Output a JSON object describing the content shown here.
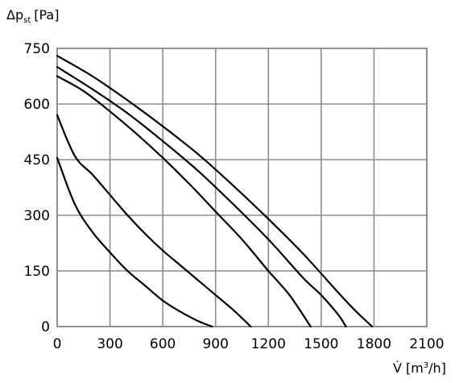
{
  "chart_data": {
    "type": "line",
    "ylabel": {
      "main": "Δp",
      "sub": "st",
      "unit": "[Pa]"
    },
    "xlabel": {
      "main": "V̇",
      "unit_pre": "[m",
      "unit_sup": "3",
      "unit_post": "/h]"
    },
    "xlim": [
      0,
      2100
    ],
    "ylim": [
      0,
      750
    ],
    "x_ticks": [
      "0",
      "300",
      "600",
      "900",
      "1200",
      "1500",
      "1800",
      "2100"
    ],
    "y_ticks": [
      "0",
      "150",
      "300",
      "450",
      "600",
      "750"
    ],
    "x_tick_values": [
      0,
      300,
      600,
      900,
      1200,
      1500,
      1800,
      2100
    ],
    "y_tick_values": [
      0,
      150,
      300,
      450,
      600,
      750
    ],
    "grid": true,
    "series": [
      {
        "x": [
          0,
          100,
          200,
          300,
          400,
          500,
          600,
          700,
          800,
          880
        ],
        "y": [
          455,
          330,
          255,
          200,
          150,
          110,
          70,
          40,
          15,
          0
        ]
      },
      {
        "x": [
          0,
          100,
          200,
          300,
          400,
          500,
          600,
          700,
          800,
          900,
          1000,
          1100
        ],
        "y": [
          570,
          460,
          410,
          355,
          300,
          250,
          205,
          165,
          125,
          85,
          45,
          0
        ]
      },
      {
        "x": [
          0,
          150,
          300,
          450,
          600,
          750,
          900,
          1050,
          1200,
          1320,
          1440
        ],
        "y": [
          675,
          635,
          580,
          520,
          455,
          385,
          310,
          235,
          150,
          85,
          0
        ]
      },
      {
        "x": [
          0,
          200,
          400,
          600,
          800,
          1000,
          1200,
          1400,
          1500,
          1600,
          1640
        ],
        "y": [
          700,
          640,
          575,
          500,
          420,
          330,
          235,
          130,
          85,
          30,
          0
        ]
      },
      {
        "x": [
          0,
          200,
          400,
          600,
          800,
          1000,
          1200,
          1400,
          1600,
          1700,
          1790
        ],
        "y": [
          730,
          675,
          610,
          540,
          465,
          380,
          290,
          195,
          90,
          40,
          0
        ]
      }
    ]
  }
}
